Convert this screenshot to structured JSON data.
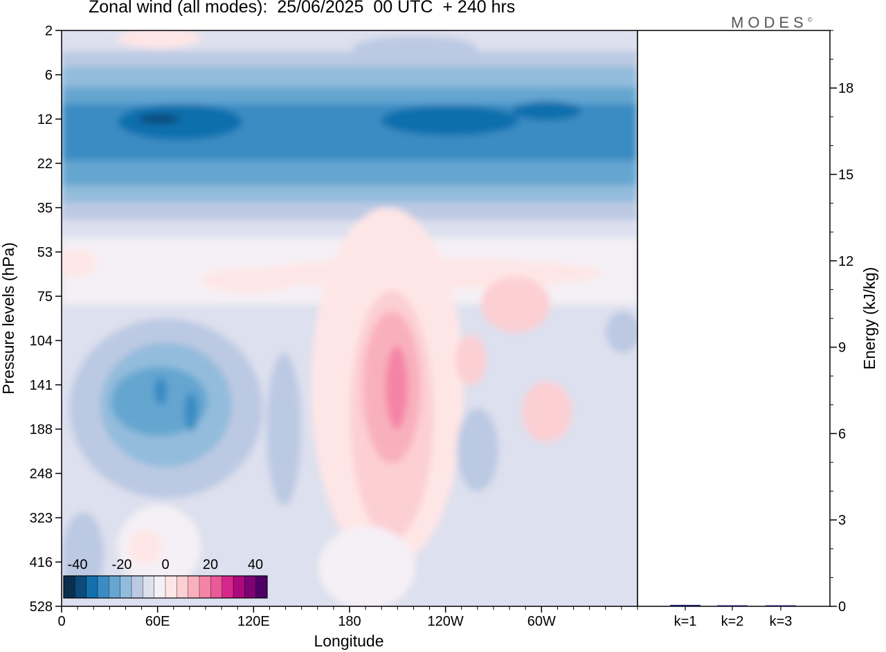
{
  "header": {
    "title": "Zonal wind (all modes):  25/06/2025  00 UTC  + 240 hrs",
    "logo": "MODES",
    "logo_mark": "©"
  },
  "chart_data": [
    {
      "type": "heatmap",
      "title": "Zonal wind (all modes):  25/06/2025  00 UTC  + 240 hrs",
      "xlabel": "Longitude",
      "ylabel": "Pressure levels (hPa)",
      "x_ticks": [
        "0",
        "60E",
        "120E",
        "180",
        "120W",
        "60W"
      ],
      "x_tick_values": [
        0,
        60,
        120,
        180,
        240,
        300
      ],
      "xlim": [
        0,
        360
      ],
      "y_ticks": [
        "2",
        "6",
        "12",
        "22",
        "35",
        "53",
        "75",
        "104",
        "141",
        "188",
        "248",
        "323",
        "416",
        "528"
      ],
      "y_scale": "pressure levels (top to bottom)",
      "colorbar": {
        "labels": [
          "-40",
          "-20",
          "0",
          "20",
          "40"
        ],
        "label_values": [
          -40,
          -20,
          0,
          20,
          40
        ],
        "range": [
          -45,
          45
        ],
        "step": 5,
        "colors": [
          "#0b2e4f",
          "#0c4a7a",
          "#1170ad",
          "#3a8cc3",
          "#65a6d0",
          "#93bcdc",
          "#bcc9e3",
          "#dde0ee",
          "#f4f0f5",
          "#ffe6e6",
          "#fccfd3",
          "#f9b0bd",
          "#f484a6",
          "#ea5a99",
          "#d6278b",
          "#aa0a7c",
          "#7d0374",
          "#4f0066"
        ]
      },
      "features": [
        {
          "lon_range": [
            0,
            360
          ],
          "level_range": [
            "12",
            "22"
          ],
          "sign": "easterly",
          "peak_value": -30
        },
        {
          "lon_range": [
            60,
            85
          ],
          "level_range": [
            "104",
            "248"
          ],
          "sign": "easterly",
          "peak_value": -20
        },
        {
          "lon_range": [
            190,
            215
          ],
          "level_range": [
            "104",
            "248"
          ],
          "sign": "westerly",
          "peak_value": 20
        }
      ]
    },
    {
      "type": "bar",
      "categories": [
        "k=1",
        "k=2",
        "k=3"
      ],
      "values": [
        0.05,
        0.03,
        0.02
      ],
      "ylabel": "Energy (kJ/kg)",
      "y_ticks": [
        0,
        3,
        6,
        9,
        12,
        15,
        18
      ],
      "ylim": [
        0,
        20
      ]
    }
  ]
}
